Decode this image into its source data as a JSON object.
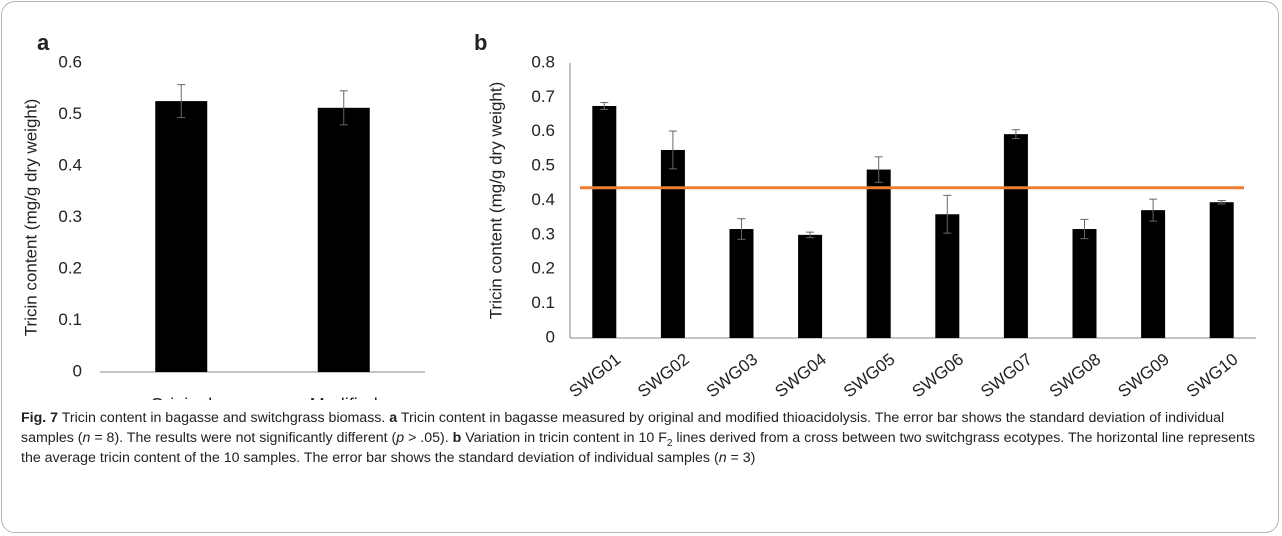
{
  "chart_data": [
    {
      "type": "bar",
      "panel": "a",
      "ylabel": "Tricin content (mg/g dry weight)",
      "categories": [
        "Original",
        "Modified"
      ],
      "values": [
        0.526,
        0.513
      ],
      "errors": [
        0.032,
        0.033
      ],
      "color": "#000000",
      "ylim": [
        0,
        0.6
      ],
      "yticks": [
        0,
        0.1,
        0.2,
        0.3,
        0.4,
        0.5,
        0.6
      ],
      "grid": false
    },
    {
      "type": "bar",
      "panel": "b",
      "ylabel": "Tricin content (mg/g dry weight)",
      "categories": [
        "SWG01",
        "SWG02",
        "SWG03",
        "SWG04",
        "SWG05",
        "SWG06",
        "SWG07",
        "SWG08",
        "SWG09",
        "SWG10"
      ],
      "values": [
        0.675,
        0.547,
        0.317,
        0.3,
        0.49,
        0.36,
        0.593,
        0.317,
        0.372,
        0.395
      ],
      "errors": [
        0.01,
        0.055,
        0.03,
        0.008,
        0.037,
        0.055,
        0.013,
        0.028,
        0.032,
        0.005
      ],
      "color": "#000000",
      "ylim": [
        0,
        0.8
      ],
      "yticks": [
        0,
        0.1,
        0.2,
        0.3,
        0.4,
        0.5,
        0.6,
        0.7,
        0.8
      ],
      "grid": false,
      "reference_line": {
        "value": 0.437,
        "color": "#ed7d31"
      }
    }
  ],
  "caption": [
    {
      "text": "Fig. 7",
      "style": "bold"
    },
    {
      "text": "  Tricin content in bagasse and switchgrass biomass. "
    },
    {
      "text": "a",
      "style": "bold"
    },
    {
      "text": " Tricin content in bagasse measured by original and modified thioacidolysis. The error bar shows the standard deviation of individual samples ("
    },
    {
      "text": "n",
      "style": "italic"
    },
    {
      "text": " = 8). The results were not significantly different ("
    },
    {
      "text": "p",
      "style": "italic"
    },
    {
      "text": " > .05). "
    },
    {
      "text": "b",
      "style": "bold"
    },
    {
      "text": " Variation in tricin content in 10 F"
    },
    {
      "text": "2",
      "style": "sub"
    },
    {
      "text": " lines derived from a cross between two switchgrass ecotypes. The horizontal line represents the average tricin content of the 10 samples. The error bar shows the standard deviation of individual samples ("
    },
    {
      "text": "n",
      "style": "italic"
    },
    {
      "text": " = 3)"
    }
  ]
}
